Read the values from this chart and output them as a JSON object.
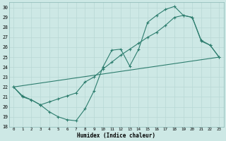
{
  "xlabel": "Humidex (Indice chaleur)",
  "xlim": [
    -0.5,
    23.5
  ],
  "ylim": [
    18,
    30.5
  ],
  "yticks": [
    18,
    19,
    20,
    21,
    22,
    23,
    24,
    25,
    26,
    27,
    28,
    29,
    30
  ],
  "xticks": [
    0,
    1,
    2,
    3,
    4,
    5,
    6,
    7,
    8,
    9,
    10,
    11,
    12,
    13,
    14,
    15,
    16,
    17,
    18,
    19,
    20,
    21,
    22,
    23
  ],
  "bg_color": "#cde8e5",
  "line_color": "#2d7d6e",
  "grid_color": "#b8d8d5",
  "line1_x": [
    0,
    1,
    2,
    3,
    4,
    5,
    6,
    7,
    8,
    9,
    10,
    11,
    12,
    13,
    14,
    15,
    16,
    17,
    18,
    19,
    20,
    21,
    22,
    23
  ],
  "line1_y": [
    22.0,
    21.0,
    20.7,
    20.2,
    19.5,
    19.0,
    18.7,
    18.6,
    19.8,
    21.6,
    24.0,
    25.7,
    25.8,
    24.1,
    25.8,
    28.5,
    29.2,
    29.8,
    30.1,
    29.2,
    29.0,
    26.6,
    26.2,
    25.0
  ],
  "line2_x": [
    0,
    23
  ],
  "line2_y": [
    22.0,
    25.0
  ],
  "line3_x": [
    0,
    1,
    2,
    3,
    4,
    5,
    6,
    7,
    8,
    9,
    10,
    11,
    12,
    13,
    14,
    15,
    16,
    17,
    18,
    19,
    20,
    21,
    22,
    23
  ],
  "line3_y": [
    22.0,
    21.1,
    20.7,
    20.2,
    20.5,
    20.8,
    21.1,
    21.4,
    22.5,
    23.0,
    23.8,
    24.5,
    25.2,
    25.8,
    26.4,
    27.0,
    27.5,
    28.2,
    29.0,
    29.2,
    29.0,
    26.7,
    26.2,
    25.0
  ]
}
